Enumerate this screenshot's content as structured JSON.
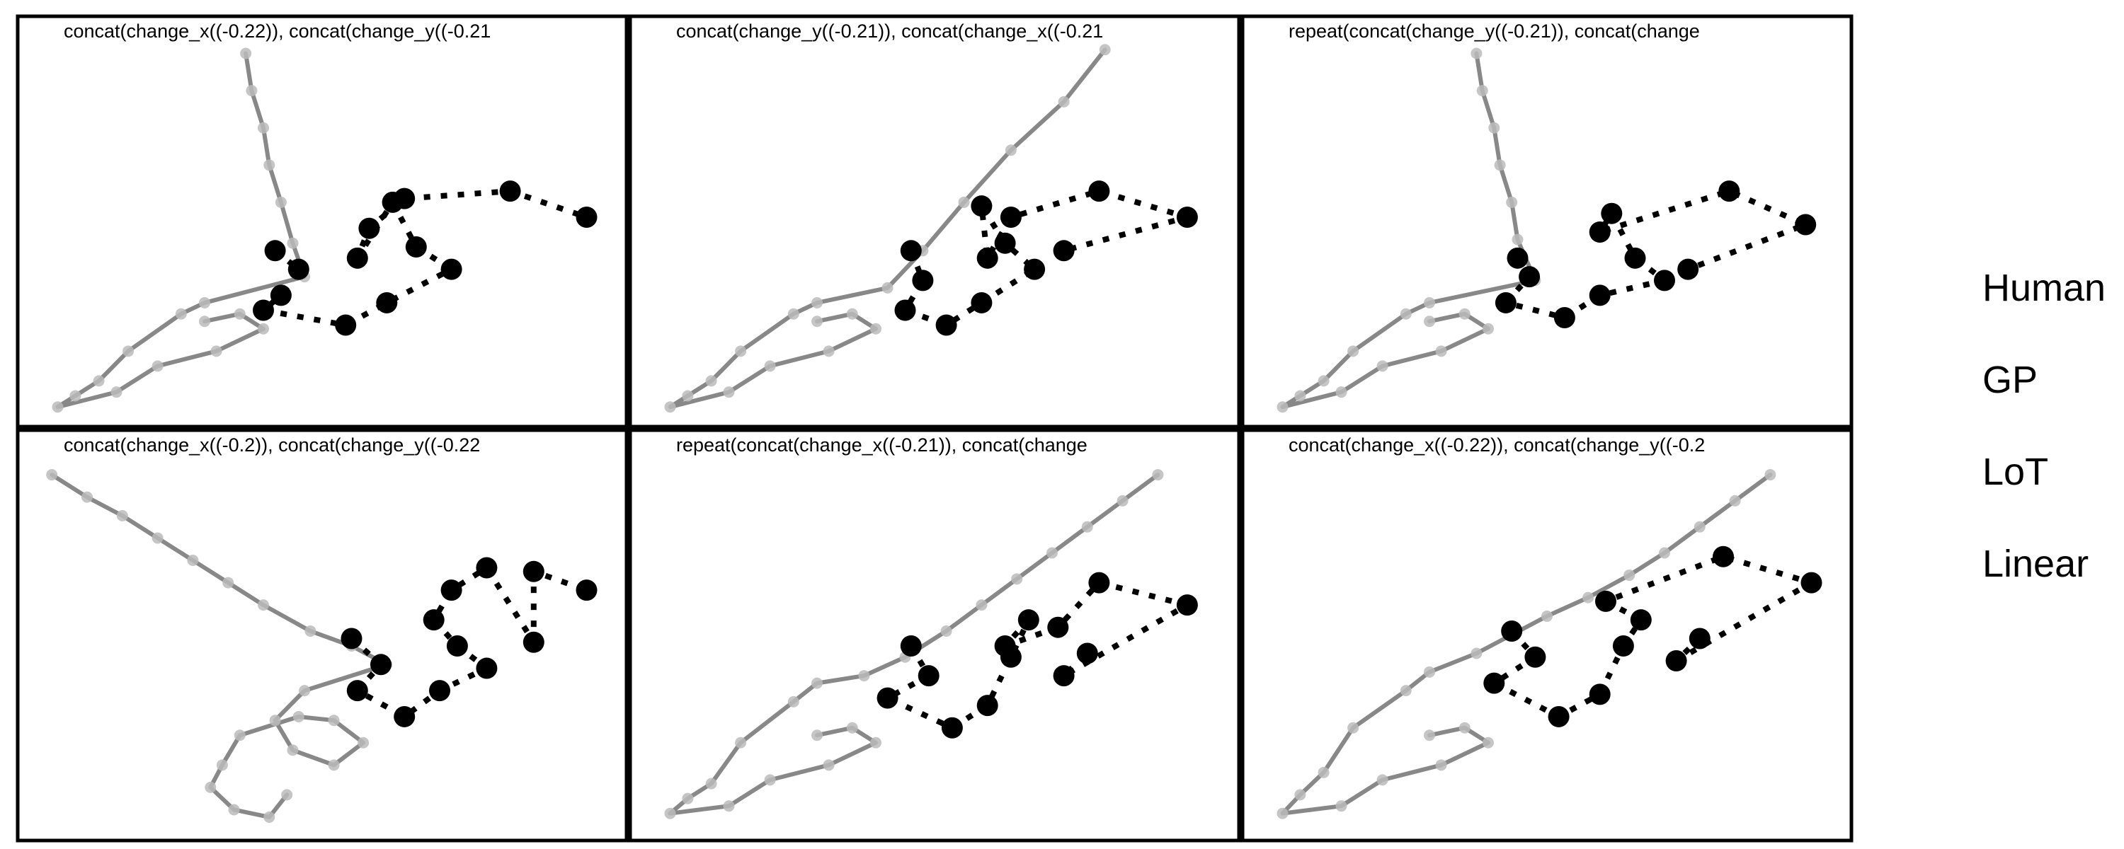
{
  "chart_data": {
    "type": "scatter",
    "panels": [
      {
        "title": "concat(change_x((-0.22)), concat(change_y((-0.21",
        "human": [
          [
            0.42,
            0.55
          ],
          [
            0.46,
            0.6
          ],
          [
            0.43,
            0.67
          ],
          [
            0.4,
            0.71
          ],
          [
            0.54,
            0.75
          ],
          [
            0.61,
            0.69
          ],
          [
            0.72,
            0.6
          ],
          [
            0.66,
            0.54
          ],
          [
            0.62,
            0.42
          ],
          [
            0.56,
            0.57
          ],
          [
            0.58,
            0.49
          ],
          [
            0.64,
            0.41
          ],
          [
            0.82,
            0.39
          ],
          [
            0.95,
            0.46
          ]
        ],
        "model": [
          [
            0.37,
            0.02
          ],
          [
            0.38,
            0.12
          ],
          [
            0.4,
            0.22
          ],
          [
            0.41,
            0.32
          ],
          [
            0.43,
            0.42
          ],
          [
            0.45,
            0.53
          ],
          [
            0.47,
            0.62
          ],
          [
            0.3,
            0.69
          ],
          [
            0.26,
            0.72
          ],
          [
            0.17,
            0.82
          ],
          [
            0.12,
            0.9
          ],
          [
            0.08,
            0.94
          ],
          [
            0.05,
            0.97
          ],
          [
            0.15,
            0.93
          ],
          [
            0.22,
            0.86
          ],
          [
            0.32,
            0.82
          ],
          [
            0.4,
            0.76
          ],
          [
            0.36,
            0.72
          ],
          [
            0.3,
            0.74
          ]
        ]
      },
      {
        "title": "concat(change_y((-0.21)), concat(change_x((-0.21",
        "human": [
          [
            0.46,
            0.55
          ],
          [
            0.48,
            0.63
          ],
          [
            0.45,
            0.71
          ],
          [
            0.52,
            0.75
          ],
          [
            0.58,
            0.69
          ],
          [
            0.67,
            0.6
          ],
          [
            0.62,
            0.53
          ],
          [
            0.58,
            0.43
          ],
          [
            0.59,
            0.57
          ],
          [
            0.63,
            0.46
          ],
          [
            0.78,
            0.39
          ],
          [
            0.93,
            0.46
          ],
          [
            0.72,
            0.55
          ]
        ],
        "model": [
          [
            0.79,
            0.01
          ],
          [
            0.72,
            0.15
          ],
          [
            0.63,
            0.28
          ],
          [
            0.55,
            0.42
          ],
          [
            0.48,
            0.55
          ],
          [
            0.42,
            0.65
          ],
          [
            0.3,
            0.69
          ],
          [
            0.26,
            0.72
          ],
          [
            0.17,
            0.82
          ],
          [
            0.12,
            0.9
          ],
          [
            0.08,
            0.94
          ],
          [
            0.05,
            0.97
          ],
          [
            0.15,
            0.93
          ],
          [
            0.22,
            0.86
          ],
          [
            0.32,
            0.82
          ],
          [
            0.4,
            0.76
          ],
          [
            0.36,
            0.72
          ],
          [
            0.3,
            0.74
          ]
        ]
      },
      {
        "title": "repeat(concat(change_y((-0.21)), concat(change",
        "human": [
          [
            0.45,
            0.57
          ],
          [
            0.47,
            0.62
          ],
          [
            0.43,
            0.69
          ],
          [
            0.53,
            0.73
          ],
          [
            0.59,
            0.67
          ],
          [
            0.7,
            0.63
          ],
          [
            0.65,
            0.57
          ],
          [
            0.61,
            0.45
          ],
          [
            0.59,
            0.5
          ],
          [
            0.81,
            0.39
          ],
          [
            0.94,
            0.48
          ],
          [
            0.74,
            0.6
          ]
        ],
        "model": [
          [
            0.38,
            0.02
          ],
          [
            0.39,
            0.12
          ],
          [
            0.41,
            0.22
          ],
          [
            0.42,
            0.32
          ],
          [
            0.44,
            0.42
          ],
          [
            0.45,
            0.52
          ],
          [
            0.48,
            0.63
          ],
          [
            0.3,
            0.69
          ],
          [
            0.26,
            0.72
          ],
          [
            0.17,
            0.82
          ],
          [
            0.12,
            0.9
          ],
          [
            0.08,
            0.94
          ],
          [
            0.05,
            0.97
          ],
          [
            0.15,
            0.93
          ],
          [
            0.22,
            0.86
          ],
          [
            0.32,
            0.82
          ],
          [
            0.4,
            0.76
          ],
          [
            0.36,
            0.72
          ],
          [
            0.3,
            0.74
          ]
        ]
      },
      {
        "title": "concat(change_x((-0.2)), concat(change_y((-0.22",
        "human": [
          [
            0.55,
            0.48
          ],
          [
            0.6,
            0.55
          ],
          [
            0.56,
            0.62
          ],
          [
            0.64,
            0.69
          ],
          [
            0.7,
            0.62
          ],
          [
            0.78,
            0.56
          ],
          [
            0.73,
            0.5
          ],
          [
            0.69,
            0.43
          ],
          [
            0.72,
            0.35
          ],
          [
            0.78,
            0.29
          ],
          [
            0.86,
            0.49
          ],
          [
            0.86,
            0.3
          ],
          [
            0.95,
            0.35
          ]
        ],
        "model": [
          [
            0.04,
            0.04
          ],
          [
            0.1,
            0.1
          ],
          [
            0.16,
            0.15
          ],
          [
            0.22,
            0.21
          ],
          [
            0.28,
            0.27
          ],
          [
            0.34,
            0.33
          ],
          [
            0.4,
            0.39
          ],
          [
            0.48,
            0.46
          ],
          [
            0.55,
            0.5
          ],
          [
            0.61,
            0.55
          ],
          [
            0.47,
            0.62
          ],
          [
            0.42,
            0.7
          ],
          [
            0.45,
            0.78
          ],
          [
            0.52,
            0.82
          ],
          [
            0.57,
            0.76
          ],
          [
            0.52,
            0.7
          ],
          [
            0.46,
            0.69
          ],
          [
            0.36,
            0.74
          ],
          [
            0.33,
            0.82
          ],
          [
            0.31,
            0.88
          ],
          [
            0.35,
            0.94
          ],
          [
            0.41,
            0.96
          ],
          [
            0.44,
            0.9
          ]
        ]
      },
      {
        "title": "repeat(concat(change_x((-0.21)), concat(change",
        "human": [
          [
            0.46,
            0.5
          ],
          [
            0.49,
            0.58
          ],
          [
            0.42,
            0.64
          ],
          [
            0.53,
            0.72
          ],
          [
            0.59,
            0.66
          ],
          [
            0.63,
            0.53
          ],
          [
            0.66,
            0.43
          ],
          [
            0.62,
            0.5
          ],
          [
            0.71,
            0.45
          ],
          [
            0.78,
            0.33
          ],
          [
            0.93,
            0.39
          ],
          [
            0.72,
            0.58
          ],
          [
            0.76,
            0.52
          ]
        ],
        "model": [
          [
            0.88,
            0.04
          ],
          [
            0.82,
            0.11
          ],
          [
            0.76,
            0.18
          ],
          [
            0.7,
            0.25
          ],
          [
            0.64,
            0.32
          ],
          [
            0.58,
            0.39
          ],
          [
            0.52,
            0.46
          ],
          [
            0.45,
            0.53
          ],
          [
            0.38,
            0.58
          ],
          [
            0.3,
            0.6
          ],
          [
            0.26,
            0.65
          ],
          [
            0.17,
            0.76
          ],
          [
            0.12,
            0.87
          ],
          [
            0.08,
            0.91
          ],
          [
            0.05,
            0.95
          ],
          [
            0.15,
            0.93
          ],
          [
            0.22,
            0.86
          ],
          [
            0.32,
            0.82
          ],
          [
            0.4,
            0.76
          ],
          [
            0.36,
            0.72
          ],
          [
            0.3,
            0.74
          ]
        ]
      },
      {
        "title": "concat(change_x((-0.22)), concat(change_y((-0.2",
        "human": [
          [
            0.44,
            0.46
          ],
          [
            0.48,
            0.53
          ],
          [
            0.41,
            0.6
          ],
          [
            0.52,
            0.69
          ],
          [
            0.59,
            0.63
          ],
          [
            0.63,
            0.5
          ],
          [
            0.66,
            0.43
          ],
          [
            0.6,
            0.38
          ],
          [
            0.8,
            0.26
          ],
          [
            0.95,
            0.33
          ],
          [
            0.72,
            0.54
          ],
          [
            0.76,
            0.48
          ]
        ],
        "model": [
          [
            0.88,
            0.04
          ],
          [
            0.82,
            0.11
          ],
          [
            0.76,
            0.18
          ],
          [
            0.7,
            0.25
          ],
          [
            0.64,
            0.31
          ],
          [
            0.57,
            0.37
          ],
          [
            0.5,
            0.42
          ],
          [
            0.44,
            0.47
          ],
          [
            0.38,
            0.52
          ],
          [
            0.3,
            0.57
          ],
          [
            0.26,
            0.62
          ],
          [
            0.17,
            0.72
          ],
          [
            0.12,
            0.84
          ],
          [
            0.08,
            0.9
          ],
          [
            0.05,
            0.95
          ],
          [
            0.15,
            0.93
          ],
          [
            0.22,
            0.86
          ],
          [
            0.32,
            0.82
          ],
          [
            0.4,
            0.76
          ],
          [
            0.36,
            0.72
          ],
          [
            0.3,
            0.74
          ]
        ]
      }
    ],
    "legend": {
      "entries": [
        "Human",
        "GP",
        "LoT",
        "Linear"
      ],
      "placement": "right"
    },
    "colors": {
      "human": "#000000",
      "model_line": "#888888",
      "model_point": "#bbbbbb",
      "frame": "#000000"
    }
  }
}
